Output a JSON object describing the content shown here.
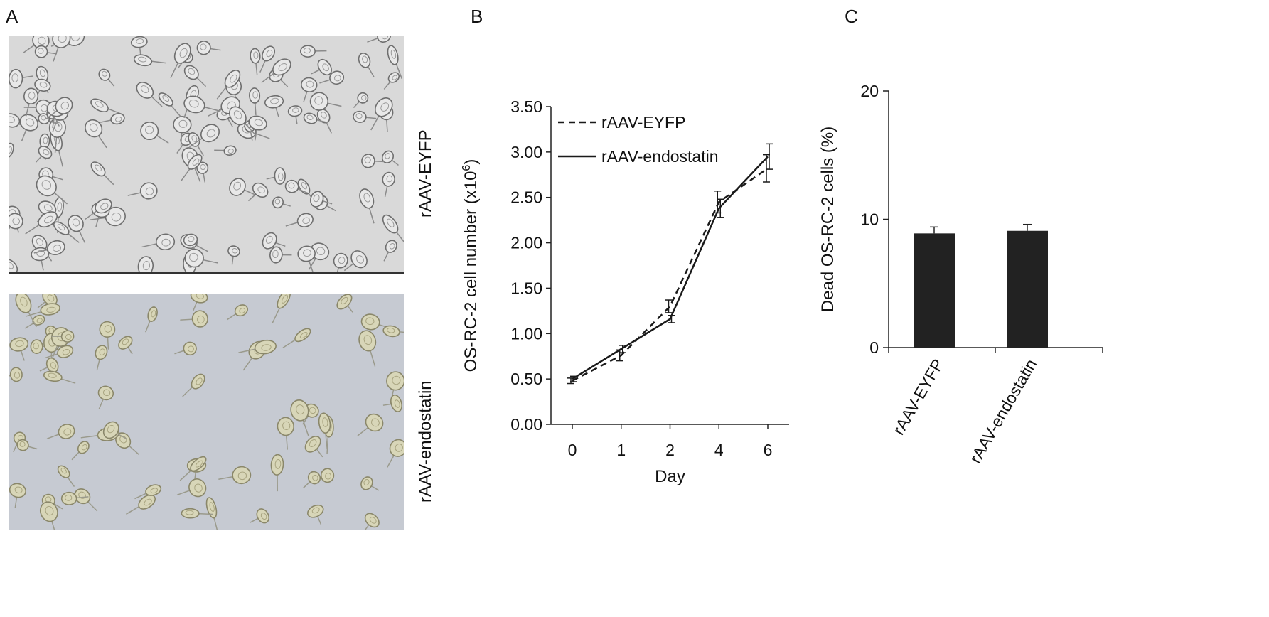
{
  "panels": {
    "a": {
      "letter": "A",
      "images": [
        {
          "label": "rAAV-EYFP",
          "tone": "#d9d9d9"
        },
        {
          "label": "rAAV-endostatin",
          "tone": "#c6cad2"
        }
      ]
    },
    "b": {
      "letter": "B"
    },
    "c": {
      "letter": "C"
    }
  },
  "chart_data": [
    {
      "type": "line",
      "panel": "B",
      "xlabel": "Day",
      "ylabel": "OS-RC-2 cell number (x10",
      "ylabel_sup": "6",
      "ylabel_close": ")",
      "categories": [
        "0",
        "1",
        "2",
        "4",
        "6"
      ],
      "ylim": [
        0,
        3.5
      ],
      "yticks": [
        "0.00",
        "0.50",
        "1.00",
        "1.50",
        "2.00",
        "2.50",
        "3.00",
        "3.50"
      ],
      "legend_position": "top-left",
      "series": [
        {
          "name": "rAAV-EYFP",
          "style": "dashed",
          "values": [
            0.48,
            0.76,
            1.3,
            2.45,
            2.82
          ],
          "errors": [
            0.03,
            0.06,
            0.07,
            0.12,
            0.15
          ]
        },
        {
          "name": "rAAV-endostatin",
          "style": "solid",
          "values": [
            0.5,
            0.83,
            1.16,
            2.38,
            2.95
          ],
          "errors": [
            0.03,
            0.04,
            0.04,
            0.1,
            0.14
          ]
        }
      ]
    },
    {
      "type": "bar",
      "panel": "C",
      "categories": [
        "rAAV-EYFP",
        "rAAV-endostatin"
      ],
      "values": [
        8.9,
        9.1
      ],
      "errors": [
        0.5,
        0.5
      ],
      "ylabel": "Dead OS-RC-2 cells (%)",
      "ylim": [
        0,
        20
      ],
      "yticks": [
        "0",
        "10",
        "20"
      ],
      "bar_color": "#222222"
    }
  ]
}
